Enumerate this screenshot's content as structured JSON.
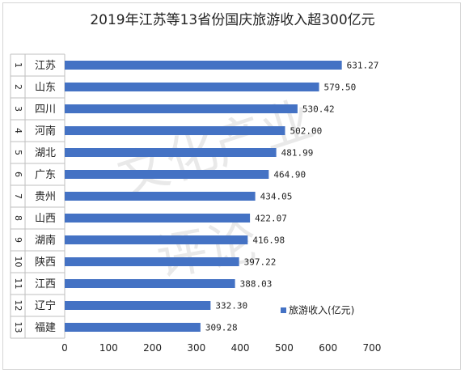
{
  "chart_data": {
    "type": "bar",
    "orientation": "horizontal",
    "title": "2019年江苏等13省份国庆旅游收入超300亿元",
    "ranks": [
      "1",
      "2",
      "3",
      "4",
      "5",
      "6",
      "7",
      "8",
      "9",
      "10",
      "11",
      "12",
      "13"
    ],
    "categories": [
      "江苏",
      "山东",
      "四川",
      "河南",
      "湖北",
      "广东",
      "贵州",
      "山西",
      "湖南",
      "陕西",
      "江西",
      "辽宁",
      "福建"
    ],
    "series": [
      {
        "name": "旅游收入(亿元)",
        "values": [
          631.27,
          579.5,
          530.42,
          502.0,
          481.99,
          464.9,
          434.05,
          422.07,
          416.98,
          397.22,
          388.03,
          332.3,
          309.28
        ],
        "labels": [
          "631.27",
          "579.50",
          "530.42",
          "502.00",
          "481.99",
          "464.90",
          "434.05",
          "422.07",
          "416.98",
          "397.22",
          "388.03",
          "332.30",
          "309.28"
        ]
      }
    ],
    "xlim": [
      0,
      700
    ],
    "xticks": [
      "0",
      "100",
      "200",
      "300",
      "400",
      "500",
      "600",
      "700"
    ],
    "grid": false,
    "legend": "bottom-right",
    "colors": {
      "bar": "#4472C4",
      "text": "#222222",
      "axis": "#bfbfbf"
    }
  },
  "watermark": {
    "top": "文化产业",
    "bottom": "评论"
  }
}
